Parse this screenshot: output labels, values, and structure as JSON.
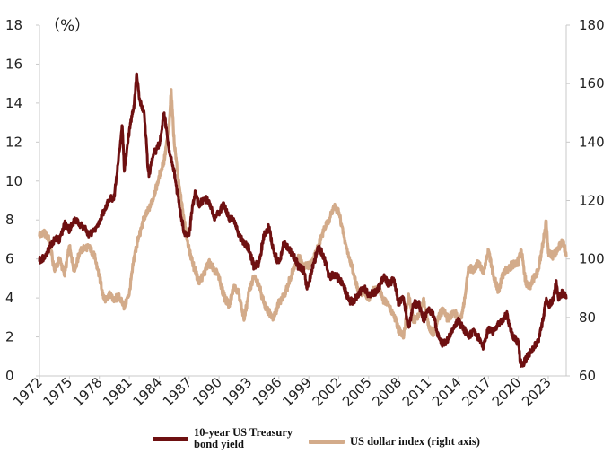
{
  "chart_data": {
    "type": "line",
    "title": "",
    "unit_label": "（%）",
    "xlabel": "",
    "ylabel_left": "%",
    "ylabel_right": "",
    "x_range": [
      1972,
      2024.8
    ],
    "ylim_left": [
      0,
      18
    ],
    "ylim_right": [
      60,
      180
    ],
    "left_ticks": [
      "0",
      "2",
      "4",
      "6",
      "8",
      "10",
      "12",
      "14",
      "16",
      "18"
    ],
    "right_ticks": [
      "60",
      "80",
      "100",
      "120",
      "140",
      "160",
      "180"
    ],
    "x_ticks": [
      "1972",
      "1975",
      "1978",
      "1981",
      "1984",
      "1987",
      "1990",
      "1993",
      "1996",
      "1999",
      "2002",
      "2005",
      "2008",
      "2011",
      "2014",
      "2017",
      "2020",
      "2023"
    ],
    "grid": false,
    "legend_position": "bottom",
    "series": [
      {
        "name": "US dollar index (right axis)",
        "axis": "right",
        "color": "#d3ab8a",
        "points": [
          [
            1972,
            108
          ],
          [
            1972.5,
            109
          ],
          [
            1973,
            106
          ],
          [
            1973.5,
            96
          ],
          [
            1974,
            100
          ],
          [
            1974.5,
            95
          ],
          [
            1975,
            104
          ],
          [
            1975.5,
            96
          ],
          [
            1976,
            102
          ],
          [
            1976.5,
            104
          ],
          [
            1977,
            104
          ],
          [
            1977.5,
            101
          ],
          [
            1978,
            94
          ],
          [
            1978.5,
            86
          ],
          [
            1979,
            88
          ],
          [
            1979.5,
            86
          ],
          [
            1980,
            87
          ],
          [
            1980.5,
            84
          ],
          [
            1981,
            88
          ],
          [
            1981.5,
            101
          ],
          [
            1982,
            108
          ],
          [
            1982.5,
            114
          ],
          [
            1983,
            117
          ],
          [
            1983.5,
            122
          ],
          [
            1984,
            128
          ],
          [
            1984.5,
            134
          ],
          [
            1985,
            145
          ],
          [
            1985.2,
            158
          ],
          [
            1985.5,
            140
          ],
          [
            1986,
            125
          ],
          [
            1986.5,
            113
          ],
          [
            1987,
            103
          ],
          [
            1987.5,
            97
          ],
          [
            1988,
            92
          ],
          [
            1988.5,
            95
          ],
          [
            1989,
            99
          ],
          [
            1989.5,
            96
          ],
          [
            1990,
            94
          ],
          [
            1990.5,
            87
          ],
          [
            1991,
            84
          ],
          [
            1991.5,
            91
          ],
          [
            1992,
            88
          ],
          [
            1992.5,
            79
          ],
          [
            1993,
            89
          ],
          [
            1993.5,
            94
          ],
          [
            1994,
            91
          ],
          [
            1994.5,
            85
          ],
          [
            1995,
            82
          ],
          [
            1995.5,
            80
          ],
          [
            1996,
            85
          ],
          [
            1996.5,
            87
          ],
          [
            1997,
            92
          ],
          [
            1997.5,
            97
          ],
          [
            1998,
            101
          ],
          [
            1998.5,
            97
          ],
          [
            1999,
            98
          ],
          [
            1999.5,
            100
          ],
          [
            2000,
            105
          ],
          [
            2000.5,
            110
          ],
          [
            2001,
            113
          ],
          [
            2001.5,
            118
          ],
          [
            2002,
            116
          ],
          [
            2002.5,
            108
          ],
          [
            2003,
            101
          ],
          [
            2003.5,
            95
          ],
          [
            2004,
            88
          ],
          [
            2004.5,
            89
          ],
          [
            2005,
            86
          ],
          [
            2005.5,
            89
          ],
          [
            2006,
            90
          ],
          [
            2006.5,
            86
          ],
          [
            2007,
            84
          ],
          [
            2007.5,
            81
          ],
          [
            2008,
            76
          ],
          [
            2008.5,
            73
          ],
          [
            2008.9,
            85
          ],
          [
            2009,
            88
          ],
          [
            2009.5,
            79
          ],
          [
            2010,
            80
          ],
          [
            2010.5,
            86
          ],
          [
            2011,
            77
          ],
          [
            2011.5,
            74
          ],
          [
            2012,
            80
          ],
          [
            2012.5,
            83
          ],
          [
            2013,
            79
          ],
          [
            2013.5,
            82
          ],
          [
            2014,
            80
          ],
          [
            2014.3,
            80
          ],
          [
            2014.7,
            88
          ],
          [
            2015,
            97
          ],
          [
            2015.5,
            96
          ],
          [
            2016,
            99
          ],
          [
            2016.5,
            95
          ],
          [
            2017,
            103
          ],
          [
            2017.5,
            94
          ],
          [
            2018,
            89
          ],
          [
            2018.5,
            95
          ],
          [
            2019,
            97
          ],
          [
            2019.5,
            98
          ],
          [
            2020,
            99
          ],
          [
            2020.3,
            103
          ],
          [
            2020.7,
            93
          ],
          [
            2021,
            90
          ],
          [
            2021.5,
            93
          ],
          [
            2022,
            96
          ],
          [
            2022.5,
            106
          ],
          [
            2022.8,
            113
          ],
          [
            2023,
            102
          ],
          [
            2023.5,
            101
          ],
          [
            2024,
            104
          ],
          [
            2024.5,
            106
          ],
          [
            2024.8,
            101
          ]
        ]
      },
      {
        "name": "10-year US Treasury bond yield",
        "axis": "left",
        "color": "#6e1011",
        "points": [
          [
            1972,
            5.9
          ],
          [
            1972.5,
            6.1
          ],
          [
            1973,
            6.6
          ],
          [
            1973.5,
            7.0
          ],
          [
            1974,
            7.0
          ],
          [
            1974.5,
            7.8
          ],
          [
            1975,
            7.5
          ],
          [
            1975.5,
            8.0
          ],
          [
            1976,
            7.8
          ],
          [
            1976.5,
            7.6
          ],
          [
            1977,
            7.2
          ],
          [
            1977.5,
            7.5
          ],
          [
            1978,
            7.9
          ],
          [
            1978.5,
            8.5
          ],
          [
            1979,
            9.0
          ],
          [
            1979.5,
            9.2
          ],
          [
            1980,
            11.5
          ],
          [
            1980.3,
            12.8
          ],
          [
            1980.5,
            10.5
          ],
          [
            1981,
            12.6
          ],
          [
            1981.5,
            14.0
          ],
          [
            1981.75,
            15.5
          ],
          [
            1982,
            14.2
          ],
          [
            1982.5,
            13.5
          ],
          [
            1982.9,
            10.5
          ],
          [
            1983,
            10.4
          ],
          [
            1983.5,
            11.5
          ],
          [
            1984,
            11.8
          ],
          [
            1984.5,
            13.5
          ],
          [
            1985,
            11.5
          ],
          [
            1985.5,
            10.5
          ],
          [
            1986,
            8.8
          ],
          [
            1986.5,
            7.3
          ],
          [
            1987,
            7.2
          ],
          [
            1987.3,
            8.5
          ],
          [
            1987.6,
            9.5
          ],
          [
            1988,
            8.7
          ],
          [
            1988.5,
            9.1
          ],
          [
            1989,
            9.0
          ],
          [
            1989.5,
            8.1
          ],
          [
            1990,
            8.4
          ],
          [
            1990.5,
            8.8
          ],
          [
            1991,
            8.1
          ],
          [
            1991.5,
            8.0
          ],
          [
            1992,
            7.2
          ],
          [
            1992.5,
            6.8
          ],
          [
            1993,
            6.5
          ],
          [
            1993.5,
            5.6
          ],
          [
            1994,
            5.8
          ],
          [
            1994.5,
            7.2
          ],
          [
            1995,
            7.6
          ],
          [
            1995.5,
            6.3
          ],
          [
            1996,
            5.8
          ],
          [
            1996.5,
            6.8
          ],
          [
            1997,
            6.5
          ],
          [
            1997.5,
            6.1
          ],
          [
            1998,
            5.6
          ],
          [
            1998.5,
            5.4
          ],
          [
            1998.8,
            4.6
          ],
          [
            1999,
            4.8
          ],
          [
            1999.5,
            5.8
          ],
          [
            2000,
            6.6
          ],
          [
            2000.5,
            6.1
          ],
          [
            2001,
            5.1
          ],
          [
            2001.5,
            5.2
          ],
          [
            2002,
            5.0
          ],
          [
            2002.5,
            4.6
          ],
          [
            2003,
            3.9
          ],
          [
            2003.5,
            3.8
          ],
          [
            2004,
            4.2
          ],
          [
            2004.5,
            4.5
          ],
          [
            2005,
            4.2
          ],
          [
            2005.5,
            4.2
          ],
          [
            2006,
            4.5
          ],
          [
            2006.5,
            5.1
          ],
          [
            2007,
            4.7
          ],
          [
            2007.5,
            5.0
          ],
          [
            2008,
            3.7
          ],
          [
            2008.5,
            4.0
          ],
          [
            2008.9,
            2.6
          ],
          [
            2009,
            2.5
          ],
          [
            2009.5,
            3.7
          ],
          [
            2010,
            3.7
          ],
          [
            2010.5,
            2.9
          ],
          [
            2011,
            3.4
          ],
          [
            2011.5,
            3.1
          ],
          [
            2012,
            2.0
          ],
          [
            2012.5,
            1.6
          ],
          [
            2013,
            1.9
          ],
          [
            2013.5,
            2.5
          ],
          [
            2014,
            2.8
          ],
          [
            2014.5,
            2.5
          ],
          [
            2015,
            2.0
          ],
          [
            2015.5,
            2.3
          ],
          [
            2016,
            2.0
          ],
          [
            2016.5,
            1.5
          ],
          [
            2017,
            2.4
          ],
          [
            2017.5,
            2.3
          ],
          [
            2018,
            2.6
          ],
          [
            2018.5,
            2.9
          ],
          [
            2018.9,
            3.2
          ],
          [
            2019,
            2.7
          ],
          [
            2019.5,
            2.0
          ],
          [
            2020,
            1.7
          ],
          [
            2020.2,
            0.7
          ],
          [
            2020.5,
            0.6
          ],
          [
            2021,
            1.1
          ],
          [
            2021.5,
            1.4
          ],
          [
            2022,
            1.8
          ],
          [
            2022.5,
            3.0
          ],
          [
            2022.8,
            4.0
          ],
          [
            2023,
            3.6
          ],
          [
            2023.5,
            3.9
          ],
          [
            2023.8,
            4.9
          ],
          [
            2024,
            4.0
          ],
          [
            2024.5,
            4.3
          ],
          [
            2024.8,
            4.0
          ]
        ]
      }
    ]
  },
  "legend": {
    "items": [
      {
        "label_line1": "10-year US Treasury",
        "label_line2": "bond yield",
        "color": "#6e1011"
      },
      {
        "label": "US dollar index (right axis)",
        "color": "#d3ab8a"
      }
    ]
  }
}
